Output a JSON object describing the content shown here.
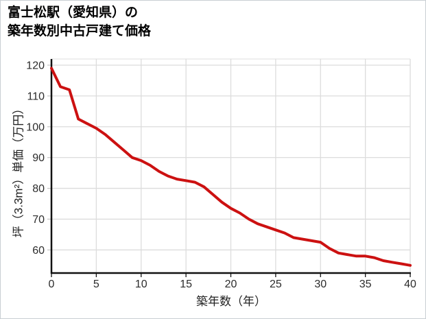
{
  "window": {
    "title_lines": [
      "富士松駅（愛知県）の",
      "築年数別中古戸建て価格"
    ]
  },
  "colors": {
    "line": "#cc1111",
    "grid": "#dcdcdc",
    "tick": "#c7c7c7",
    "axis": "#111111",
    "tick_label": "#2b2b2b",
    "background": "#ffffff",
    "border": "#c9ced3"
  },
  "chart_data": {
    "type": "line",
    "title": "富士松駅（愛知県）の 築年数別中古戸建て価格",
    "xlabel": "築年数（年）",
    "ylabel": "坪（3.3m²）単価（万円）",
    "xlim": [
      0,
      40
    ],
    "ylim": [
      52.5,
      122
    ],
    "xticks": [
      0,
      5,
      10,
      15,
      20,
      25,
      30,
      35,
      40
    ],
    "yticks": [
      60,
      70,
      80,
      90,
      100,
      110,
      120
    ],
    "grid": true,
    "legend_position": "none",
    "series": [
      {
        "name": "中古戸建て価格",
        "color": "#cc1111",
        "x": [
          0,
          1,
          2,
          3,
          4,
          5,
          6,
          7,
          8,
          9,
          10,
          11,
          12,
          13,
          14,
          15,
          16,
          17,
          18,
          19,
          20,
          21,
          22,
          23,
          24,
          25,
          26,
          27,
          28,
          29,
          30,
          31,
          32,
          33,
          34,
          35,
          36,
          37,
          38,
          39,
          40
        ],
        "y": [
          119,
          113,
          112,
          102.5,
          101,
          99.5,
          97.5,
          95,
          92.5,
          90,
          89,
          87.5,
          85.5,
          84,
          83,
          82.5,
          82,
          80.5,
          78,
          75.5,
          73.5,
          72,
          70,
          68.5,
          67.5,
          66.5,
          65.5,
          64,
          63.5,
          63,
          62.5,
          60.5,
          59,
          58.5,
          58,
          58,
          57.5,
          56.5,
          56,
          55.5,
          55
        ]
      }
    ]
  }
}
